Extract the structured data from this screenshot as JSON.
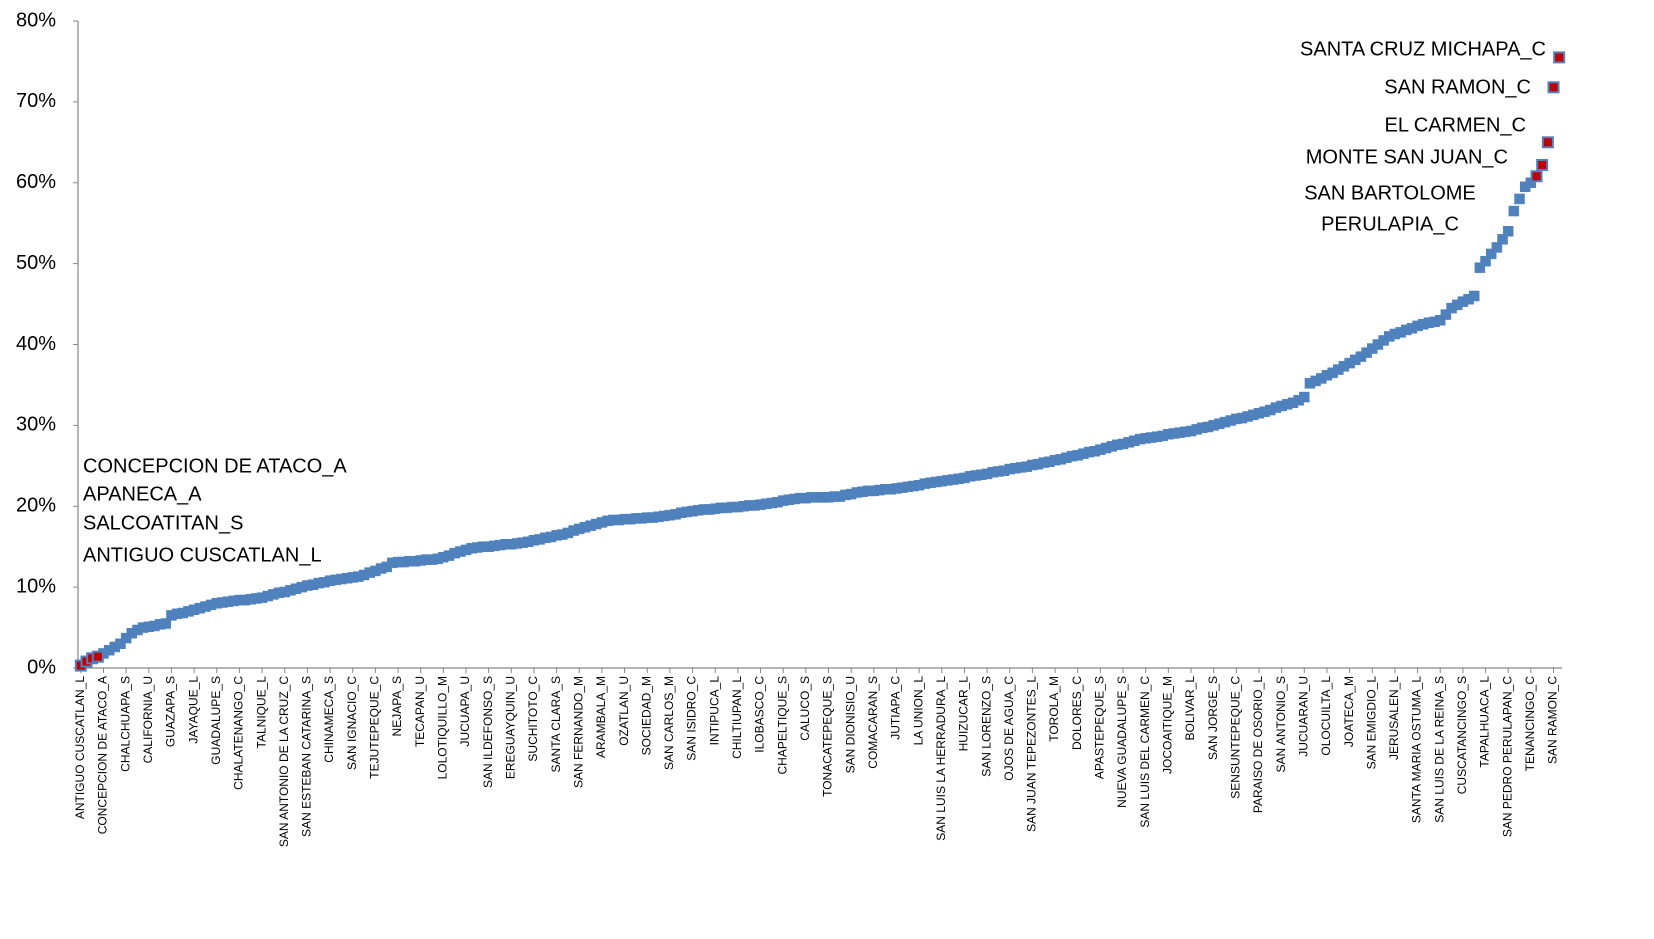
{
  "chart_data": {
    "type": "scatter",
    "ylim": [
      0,
      80
    ],
    "yticks": [
      {
        "value": 0,
        "label": "0%"
      },
      {
        "value": 10,
        "label": "10%"
      },
      {
        "value": 20,
        "label": "20%"
      },
      {
        "value": 30,
        "label": "30%"
      },
      {
        "value": 40,
        "label": "40%"
      },
      {
        "value": 50,
        "label": "50%"
      },
      {
        "value": 60,
        "label": "60%"
      },
      {
        "value": 70,
        "label": "70%"
      },
      {
        "value": 80,
        "label": "80%"
      }
    ],
    "color": "#4f81bd",
    "highlight_color": "#c00000",
    "highlight_points": [
      0,
      1,
      2,
      3,
      257,
      258,
      259,
      260,
      261
    ],
    "annotations_left": [
      "CONCEPCION DE ATACO_A",
      "APANECA_A",
      "SALCOATITAN_S",
      "ANTIGUO CUSCATLAN_L"
    ],
    "annotations_right": [
      [
        "SANTA CRUZ MICHAPA_C"
      ],
      [
        "SAN RAMON_C"
      ],
      [
        "EL CARMEN_C"
      ],
      [
        "MONTE SAN JUAN_C"
      ],
      [
        "SAN BARTOLOME",
        "PERULAPIA_C"
      ]
    ],
    "categories": [
      "ANTIGUO CUSCATLAN_L",
      null,
      null,
      null,
      "CONCEPCION DE ATACO_A",
      null,
      null,
      null,
      "CHALCHUAPA_S",
      null,
      null,
      null,
      "CALIFORNIA_U",
      null,
      null,
      null,
      "GUAZAPA_S",
      null,
      null,
      null,
      "JAYAQUE_L",
      null,
      null,
      null,
      "GUADALUPE_S",
      null,
      null,
      null,
      "CHALATENANGO_C",
      null,
      null,
      null,
      "TALNIQUE_L",
      null,
      null,
      null,
      "SAN ANTONIO DE LA CRUZ_C",
      null,
      null,
      null,
      "SAN ESTEBAN CATARINA_S",
      null,
      null,
      null,
      "CHINAMECA_S",
      null,
      null,
      null,
      "SAN IGNACIO_C",
      null,
      null,
      null,
      "TEJUTEPEQUE_C",
      null,
      null,
      null,
      "NEJAPA_S",
      null,
      null,
      null,
      "TECAPAN_U",
      null,
      null,
      null,
      "LOLOTIQUILLO_M",
      null,
      null,
      null,
      "JUCUAPA_U",
      null,
      null,
      null,
      "SAN ILDEFONSO_S",
      null,
      null,
      null,
      "EREGUAYQUIN_U",
      null,
      null,
      null,
      "SUCHITOTO_C",
      null,
      null,
      null,
      "SANTA CLARA_S",
      null,
      null,
      null,
      "SAN FERNANDO_M",
      null,
      null,
      null,
      "ARAMBALA_M",
      null,
      null,
      null,
      "OZATLAN_U",
      null,
      null,
      null,
      "SOCIEDAD_M",
      null,
      null,
      null,
      "SAN CARLOS_M",
      null,
      null,
      null,
      "SAN ISIDRO_C",
      null,
      null,
      null,
      "INTIPUCA_L",
      null,
      null,
      null,
      "CHILTIUPAN_L",
      null,
      null,
      null,
      "ILOBASCO_C",
      null,
      null,
      null,
      "CHAPELTIQUE_S",
      null,
      null,
      null,
      "CALUCO_S",
      null,
      null,
      null,
      "TONACATEPEQUE_S",
      null,
      null,
      null,
      "SAN DIONISIO_U",
      null,
      null,
      null,
      "COMACARAN_S",
      null,
      null,
      null,
      "JUTIAPA_C",
      null,
      null,
      null,
      "LA UNION_L",
      null,
      null,
      null,
      "SAN LUIS LA HERRADURA_L",
      null,
      null,
      null,
      "HUIZUCAR_L",
      null,
      null,
      null,
      "SAN LORENZO_S",
      null,
      null,
      null,
      "OJOS DE AGUA_C",
      null,
      null,
      null,
      "SAN JUAN TEPEZONTES_L",
      null,
      null,
      null,
      "TOROLA_M",
      null,
      null,
      null,
      "DOLORES_C",
      null,
      null,
      null,
      "APASTEPEQUE_S",
      null,
      null,
      null,
      "NUEVA GUADALUPE_S",
      null,
      null,
      null,
      "SAN LUIS DEL CARMEN_C",
      null,
      null,
      null,
      "JOCOAITIQUE_M",
      null,
      null,
      null,
      "BOLIVAR_L",
      null,
      null,
      null,
      "SAN JORGE_S",
      null,
      null,
      null,
      "SENSUNTEPEQUE_C",
      null,
      null,
      null,
      "PARAISO DE OSORIO_L",
      null,
      null,
      null,
      "SAN ANTONIO_S",
      null,
      null,
      null,
      "JUCUARAN_U",
      null,
      null,
      null,
      "OLOCUILTA_L",
      null,
      null,
      null,
      "JOATECA_M",
      null,
      null,
      null,
      "SAN EMIGDIO_L",
      null,
      null,
      null,
      "JERUSALEN_L",
      null,
      null,
      null,
      "SANTA MARIA OSTUMA_L",
      null,
      null,
      null,
      "SAN LUIS DE LA REINA_S",
      null,
      null,
      null,
      "CUSCATANCINGO_S",
      null,
      null,
      null,
      "TAPALHUACA_L",
      null,
      null,
      null,
      "SAN PEDRO PERULAPAN_C",
      null,
      null,
      null,
      "TENANCINGO_C",
      null,
      null,
      null,
      "SAN RAMON_C",
      null
    ],
    "values": [
      0.3,
      0.8,
      1.2,
      1.4,
      1.8,
      2.2,
      2.6,
      3.0,
      3.7,
      4.3,
      4.7,
      5.0,
      5.1,
      5.2,
      5.4,
      5.5,
      6.5,
      6.7,
      6.8,
      7.0,
      7.2,
      7.4,
      7.6,
      7.8,
      8.0,
      8.1,
      8.2,
      8.3,
      8.4,
      8.4,
      8.5,
      8.6,
      8.7,
      8.9,
      9.1,
      9.3,
      9.4,
      9.6,
      9.8,
      10.0,
      10.2,
      10.3,
      10.5,
      10.6,
      10.8,
      10.9,
      11.0,
      11.1,
      11.2,
      11.3,
      11.5,
      11.8,
      12.0,
      12.3,
      12.5,
      13.0,
      13.1,
      13.1,
      13.2,
      13.2,
      13.3,
      13.4,
      13.4,
      13.5,
      13.7,
      13.9,
      14.2,
      14.4,
      14.6,
      14.8,
      14.9,
      15.0,
      15.0,
      15.1,
      15.2,
      15.3,
      15.3,
      15.4,
      15.5,
      15.6,
      15.8,
      15.9,
      16.1,
      16.2,
      16.4,
      16.5,
      16.7,
      17.0,
      17.2,
      17.4,
      17.6,
      17.8,
      18.0,
      18.2,
      18.3,
      18.3,
      18.4,
      18.4,
      18.5,
      18.5,
      18.6,
      18.6,
      18.7,
      18.8,
      18.9,
      19.0,
      19.2,
      19.3,
      19.4,
      19.5,
      19.6,
      19.6,
      19.7,
      19.8,
      19.8,
      19.9,
      19.9,
      20.0,
      20.1,
      20.1,
      20.2,
      20.3,
      20.4,
      20.5,
      20.7,
      20.8,
      20.9,
      21.0,
      21.0,
      21.1,
      21.1,
      21.1,
      21.1,
      21.2,
      21.2,
      21.4,
      21.5,
      21.7,
      21.8,
      21.9,
      21.9,
      22.0,
      22.1,
      22.1,
      22.2,
      22.3,
      22.4,
      22.5,
      22.6,
      22.8,
      22.9,
      23.0,
      23.1,
      23.2,
      23.3,
      23.4,
      23.5,
      23.7,
      23.8,
      23.9,
      24.0,
      24.2,
      24.3,
      24.4,
      24.6,
      24.7,
      24.8,
      24.9,
      25.1,
      25.2,
      25.4,
      25.5,
      25.7,
      25.8,
      26.0,
      26.2,
      26.3,
      26.5,
      26.7,
      26.8,
      27.0,
      27.2,
      27.4,
      27.6,
      27.7,
      27.9,
      28.1,
      28.3,
      28.4,
      28.5,
      28.6,
      28.7,
      28.9,
      29.0,
      29.1,
      29.2,
      29.3,
      29.5,
      29.7,
      29.8,
      30.0,
      30.2,
      30.4,
      30.6,
      30.8,
      30.9,
      31.1,
      31.3,
      31.5,
      31.7,
      31.9,
      32.2,
      32.4,
      32.6,
      32.8,
      33.1,
      33.5,
      35.2,
      35.5,
      35.8,
      36.2,
      36.5,
      36.9,
      37.3,
      37.7,
      38.1,
      38.5,
      39.0,
      39.5,
      40.0,
      40.5,
      41.0,
      41.3,
      41.5,
      41.8,
      42.0,
      42.3,
      42.5,
      42.7,
      42.8,
      43.0,
      43.7,
      44.5,
      44.9,
      45.3,
      45.6,
      46.0,
      49.5,
      50.3,
      51.2,
      52.0,
      53.0,
      54.0,
      56.5,
      58.0,
      59.5,
      60.0,
      60.8,
      62.2,
      65.0,
      71.8,
      75.5
    ]
  }
}
